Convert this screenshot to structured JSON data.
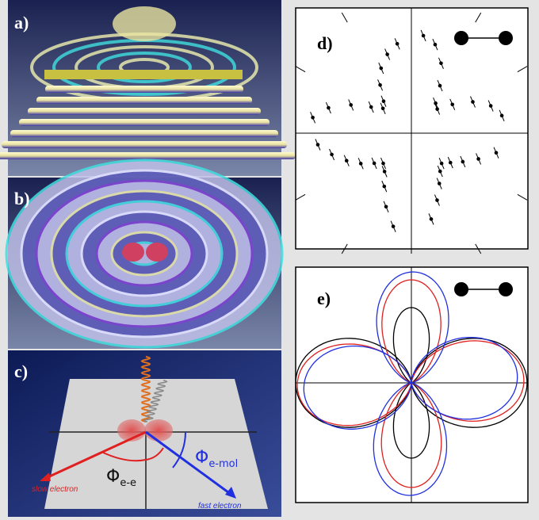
{
  "panels": [
    {
      "label": "a)"
    },
    {
      "label": "b)"
    },
    {
      "label": "c)"
    },
    {
      "label": "d)"
    },
    {
      "label": "e)"
    }
  ],
  "annotations": {
    "slow_electron": "slow electron",
    "fast_electron": "fast electron",
    "phi_ee": {
      "symbol": "Φ",
      "subscript": "e-e"
    },
    "phi_emol": {
      "symbol": "Φ",
      "subscript": "e-mol"
    }
  }
}
